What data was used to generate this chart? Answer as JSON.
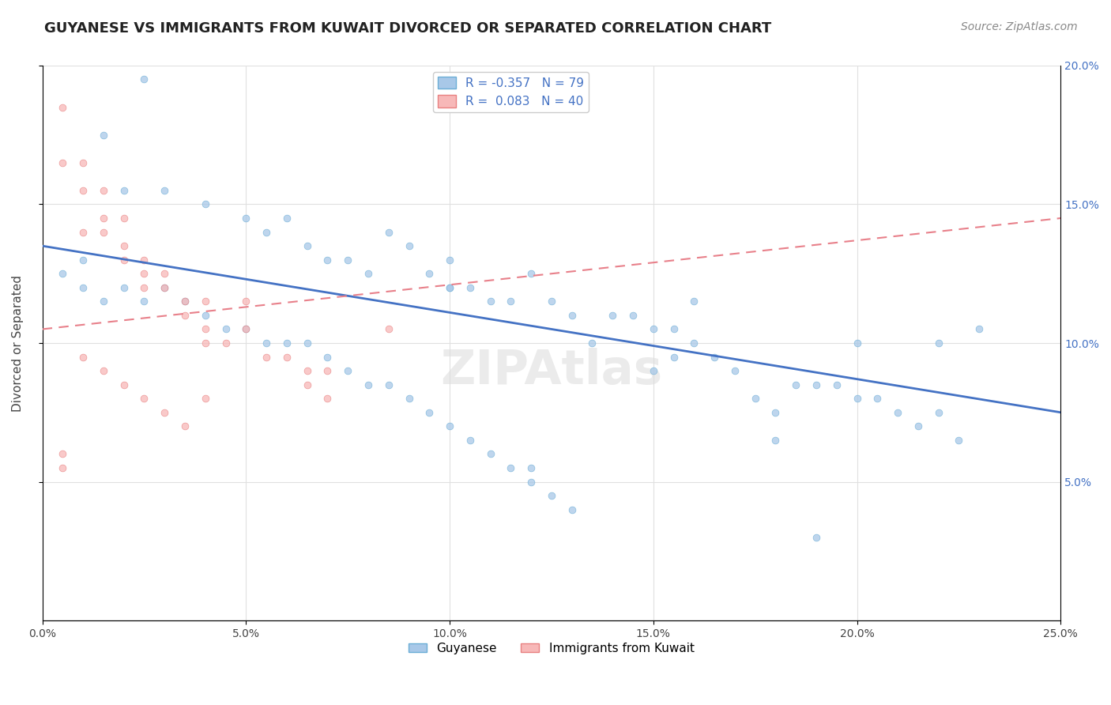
{
  "title": "GUYANESE VS IMMIGRANTS FROM KUWAIT DIVORCED OR SEPARATED CORRELATION CHART",
  "source": "Source: ZipAtlas.com",
  "ylabel": "Divorced or Separated",
  "xlabel": "",
  "xlim": [
    0.0,
    0.25
  ],
  "ylim": [
    0.0,
    0.2
  ],
  "xtick_vals": [
    0.0,
    0.05,
    0.1,
    0.15,
    0.2,
    0.25
  ],
  "ytick_vals": [
    0.05,
    0.1,
    0.15,
    0.2
  ],
  "legend_entries": [
    {
      "label": "Guyanese",
      "R": "-0.357",
      "N": "79"
    },
    {
      "label": "Immigrants from Kuwait",
      "R": "0.083",
      "N": "40"
    }
  ],
  "blue_scatter": [
    [
      0.01,
      0.13
    ],
    [
      0.025,
      0.195
    ],
    [
      0.015,
      0.175
    ],
    [
      0.02,
      0.155
    ],
    [
      0.03,
      0.155
    ],
    [
      0.04,
      0.15
    ],
    [
      0.05,
      0.145
    ],
    [
      0.055,
      0.14
    ],
    [
      0.06,
      0.145
    ],
    [
      0.065,
      0.135
    ],
    [
      0.07,
      0.13
    ],
    [
      0.075,
      0.13
    ],
    [
      0.08,
      0.125
    ],
    [
      0.085,
      0.14
    ],
    [
      0.09,
      0.135
    ],
    [
      0.095,
      0.125
    ],
    [
      0.1,
      0.13
    ],
    [
      0.1,
      0.12
    ],
    [
      0.105,
      0.12
    ],
    [
      0.11,
      0.115
    ],
    [
      0.115,
      0.115
    ],
    [
      0.12,
      0.125
    ],
    [
      0.125,
      0.115
    ],
    [
      0.13,
      0.11
    ],
    [
      0.135,
      0.1
    ],
    [
      0.14,
      0.11
    ],
    [
      0.145,
      0.11
    ],
    [
      0.15,
      0.105
    ],
    [
      0.155,
      0.105
    ],
    [
      0.155,
      0.095
    ],
    [
      0.16,
      0.1
    ],
    [
      0.165,
      0.095
    ],
    [
      0.17,
      0.09
    ],
    [
      0.175,
      0.08
    ],
    [
      0.18,
      0.075
    ],
    [
      0.185,
      0.085
    ],
    [
      0.19,
      0.085
    ],
    [
      0.195,
      0.085
    ],
    [
      0.2,
      0.08
    ],
    [
      0.205,
      0.08
    ],
    [
      0.21,
      0.075
    ],
    [
      0.215,
      0.07
    ],
    [
      0.22,
      0.075
    ],
    [
      0.225,
      0.065
    ],
    [
      0.005,
      0.125
    ],
    [
      0.01,
      0.12
    ],
    [
      0.015,
      0.115
    ],
    [
      0.02,
      0.12
    ],
    [
      0.025,
      0.115
    ],
    [
      0.03,
      0.12
    ],
    [
      0.035,
      0.115
    ],
    [
      0.04,
      0.11
    ],
    [
      0.045,
      0.105
    ],
    [
      0.05,
      0.105
    ],
    [
      0.055,
      0.1
    ],
    [
      0.06,
      0.1
    ],
    [
      0.065,
      0.1
    ],
    [
      0.07,
      0.095
    ],
    [
      0.075,
      0.09
    ],
    [
      0.08,
      0.085
    ],
    [
      0.085,
      0.085
    ],
    [
      0.09,
      0.08
    ],
    [
      0.095,
      0.075
    ],
    [
      0.1,
      0.07
    ],
    [
      0.105,
      0.065
    ],
    [
      0.11,
      0.06
    ],
    [
      0.115,
      0.055
    ],
    [
      0.12,
      0.05
    ],
    [
      0.125,
      0.045
    ],
    [
      0.13,
      0.04
    ],
    [
      0.16,
      0.115
    ],
    [
      0.22,
      0.1
    ],
    [
      0.23,
      0.105
    ],
    [
      0.19,
      0.03
    ],
    [
      0.15,
      0.09
    ],
    [
      0.18,
      0.065
    ],
    [
      0.1,
      0.12
    ],
    [
      0.2,
      0.1
    ],
    [
      0.12,
      0.055
    ]
  ],
  "pink_scatter": [
    [
      0.005,
      0.185
    ],
    [
      0.01,
      0.165
    ],
    [
      0.01,
      0.155
    ],
    [
      0.015,
      0.155
    ],
    [
      0.015,
      0.145
    ],
    [
      0.015,
      0.14
    ],
    [
      0.02,
      0.145
    ],
    [
      0.02,
      0.135
    ],
    [
      0.02,
      0.13
    ],
    [
      0.025,
      0.13
    ],
    [
      0.025,
      0.125
    ],
    [
      0.025,
      0.12
    ],
    [
      0.03,
      0.125
    ],
    [
      0.03,
      0.12
    ],
    [
      0.035,
      0.115
    ],
    [
      0.035,
      0.11
    ],
    [
      0.04,
      0.115
    ],
    [
      0.04,
      0.105
    ],
    [
      0.04,
      0.1
    ],
    [
      0.045,
      0.1
    ],
    [
      0.05,
      0.115
    ],
    [
      0.05,
      0.105
    ],
    [
      0.055,
      0.095
    ],
    [
      0.06,
      0.095
    ],
    [
      0.065,
      0.09
    ],
    [
      0.065,
      0.085
    ],
    [
      0.07,
      0.09
    ],
    [
      0.07,
      0.08
    ],
    [
      0.005,
      0.06
    ],
    [
      0.005,
      0.055
    ],
    [
      0.01,
      0.095
    ],
    [
      0.015,
      0.09
    ],
    [
      0.02,
      0.085
    ],
    [
      0.025,
      0.08
    ],
    [
      0.03,
      0.075
    ],
    [
      0.035,
      0.07
    ],
    [
      0.085,
      0.105
    ],
    [
      0.04,
      0.08
    ],
    [
      0.01,
      0.14
    ],
    [
      0.005,
      0.165
    ]
  ],
  "blue_line_x": [
    0.0,
    0.25
  ],
  "blue_line_y": [
    0.135,
    0.075
  ],
  "pink_line_x": [
    0.0,
    0.25
  ],
  "pink_line_y": [
    0.105,
    0.145
  ],
  "title_fontsize": 13,
  "axis_label_fontsize": 11,
  "tick_fontsize": 10,
  "legend_fontsize": 11,
  "source_fontsize": 10,
  "background_color": "#ffffff",
  "grid_color": "#e0e0e0",
  "scatter_size": 40,
  "scatter_alpha": 0.75,
  "blue_face": "#a8c8e8",
  "blue_edge": "#6baed6",
  "pink_face": "#f7b8b8",
  "pink_edge": "#e88080",
  "blue_line_color": "#4472c4",
  "pink_line_color": "#e8808a"
}
